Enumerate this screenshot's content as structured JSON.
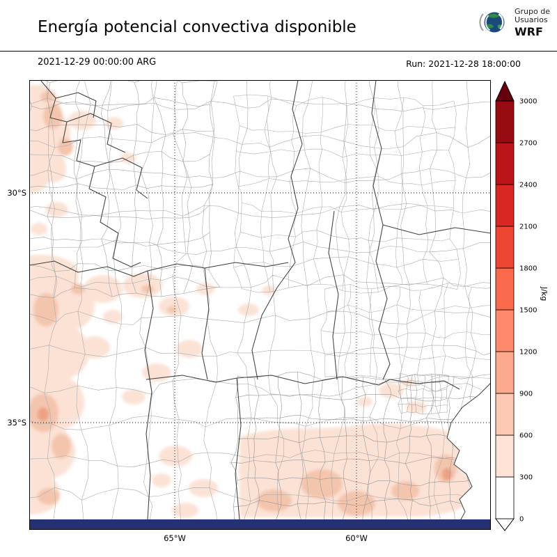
{
  "header": {
    "title": "Energía potencial convectiva disponible",
    "valid_time": "2021-12-29 00:00:00 ARG",
    "run_label": "Run: 2021-12-28 18:00:00",
    "logo": {
      "line1": "Grupo de",
      "line2": "Usuarios",
      "line3": "WRF"
    }
  },
  "axes": {
    "lat_ticks": [
      "30°S",
      "35°S"
    ],
    "lon_ticks": [
      "65°W",
      "60°W"
    ]
  },
  "map_colors": {
    "land": "#ffffff",
    "department_border": "#a8a8a8",
    "province_border": "#3f3f3f",
    "gridline": "#000000",
    "bottom_bar": "#263173",
    "shade_light": "#fbe2d5",
    "shade_medium": "#f4c5ad",
    "shade_strong": "#eda183"
  },
  "chart_data": {
    "type": "heatmap",
    "title": "Energía potencial convectiva disponible",
    "variable": "CAPE (convective available potential energy)",
    "unit": "J/kg",
    "valid_time": "2021-12-29 00:00:00 ARG",
    "run_time": "2021-12-28 18:00:00",
    "region": "central and northern Argentina",
    "lat_gridlines": [
      "30°S",
      "35°S"
    ],
    "lon_gridlines": [
      "65°W",
      "60°W"
    ],
    "colorbar": {
      "levels": [
        0,
        300,
        600,
        900,
        1200,
        1500,
        1800,
        2100,
        2400,
        2700,
        3000
      ],
      "interval_colors": [
        "#ffffff",
        "#fee3d6",
        "#fdc9b4",
        "#fcaa8e",
        "#fc8a6b",
        "#f9694c",
        "#ef4533",
        "#d92723",
        "#bb151a",
        "#970b13"
      ],
      "over_color": "#67000d",
      "under_color": "#ffffff",
      "unit": "J/kg",
      "extend": "both"
    },
    "observed_values": {
      "max_shading_interval": "300-600 J/kg",
      "shaded_areas": [
        "western Andes foothills along the left map edge (~28-37°S)",
        "scattered central patches near 33-34°S, 66-64°W",
        "southern Buenos Aires province and Atlantic coast near Mar del Plata"
      ],
      "unshaded_areas": "most of the north-central and northeastern map is below 300 J/kg (white)"
    }
  }
}
